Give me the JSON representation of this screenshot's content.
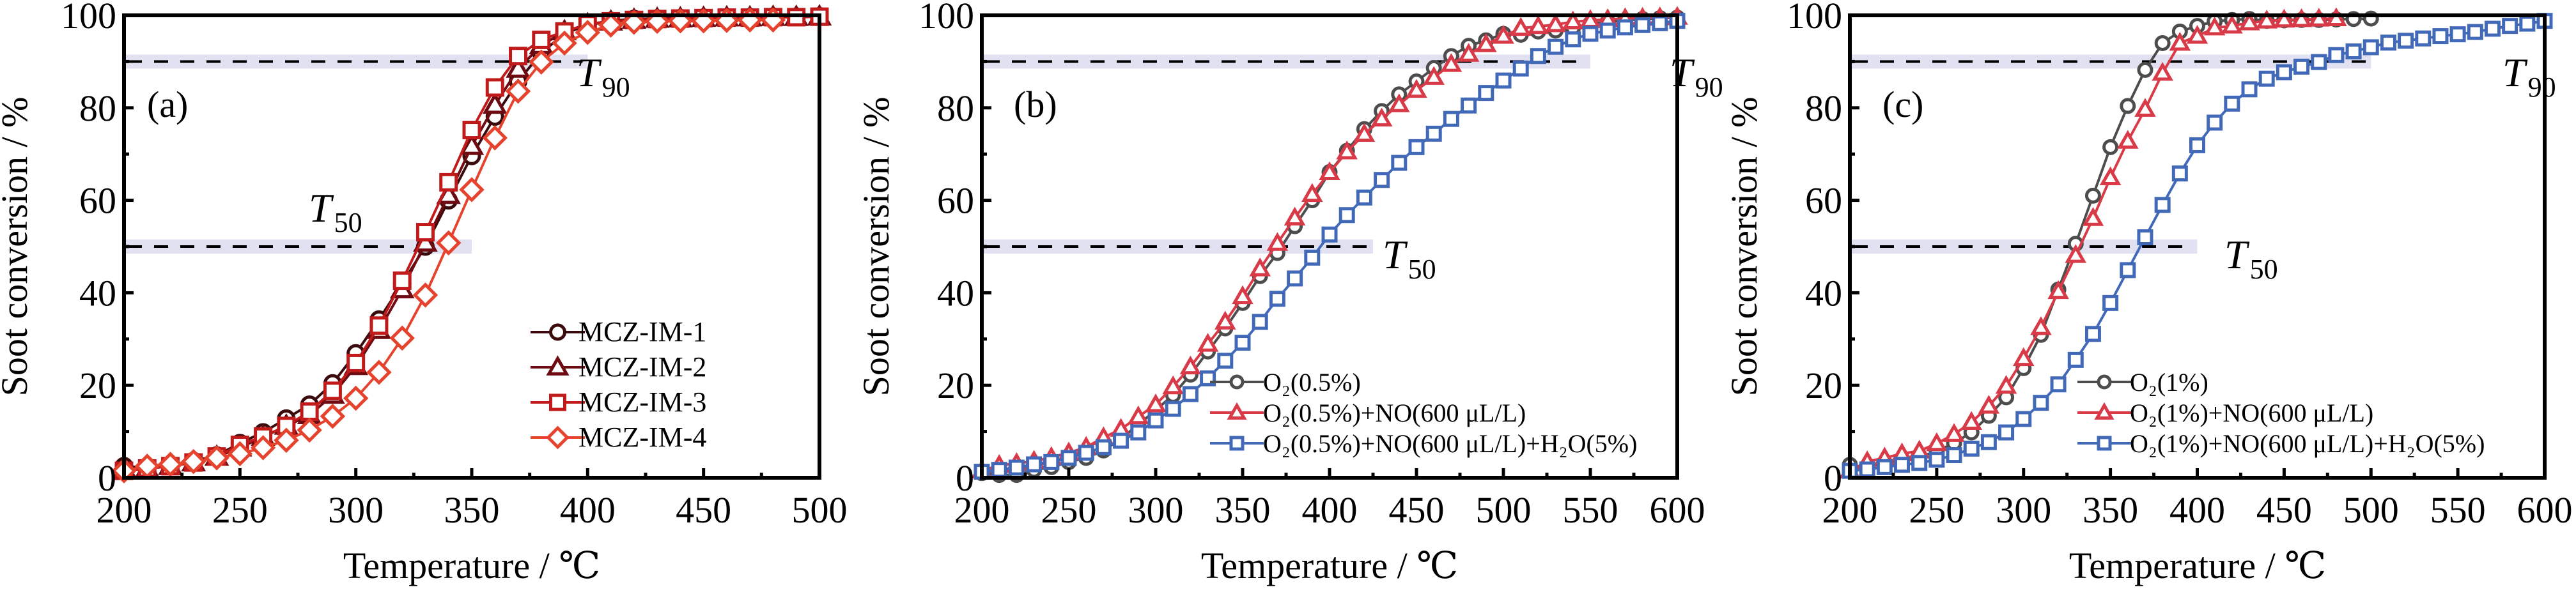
{
  "figure": {
    "y_axis_title": "Soot conversion / %",
    "x_axis_title": "Temperature / ℃"
  },
  "chart_data": [
    {
      "type": "line",
      "panel_label": "(a)",
      "title": "",
      "xlabel": "Temperature / ℃",
      "ylabel": "Soot conversion / %",
      "xlim": [
        200,
        500
      ],
      "ylim": [
        0,
        100
      ],
      "xticks": [
        200,
        250,
        300,
        350,
        400,
        450,
        500
      ],
      "yticks": [
        0,
        20,
        40,
        60,
        80,
        100
      ],
      "grid": false,
      "legend_position": "bottom-right",
      "reference_lines": [
        {
          "label": "T",
          "subscript": "50",
          "y": 50,
          "x_end": 350
        },
        {
          "label": "T",
          "subscript": "90",
          "y": 90,
          "x_end": 400
        }
      ],
      "series": [
        {
          "name": "MCZ-IM-1",
          "marker": "circle",
          "color": "#3b0a0c",
          "x": [
            200,
            210,
            220,
            230,
            240,
            250,
            260,
            270,
            280,
            290,
            300,
            310,
            320,
            330,
            340,
            350,
            360,
            370,
            380,
            390,
            400,
            410,
            420,
            430,
            440,
            450,
            460,
            470,
            480,
            490,
            500
          ],
          "y": [
            2.5,
            2.2,
            2.6,
            3.6,
            4.8,
            7.5,
            9.8,
            12.8,
            15.8,
            20.4,
            26.9,
            34.2,
            42.0,
            50.0,
            60.0,
            69.6,
            78.1,
            85.7,
            91.9,
            96.0,
            98.0,
            98.8,
            99.2,
            99.3,
            99.4,
            99.5,
            99.5,
            99.6,
            99.7,
            99.7,
            99.8
          ]
        },
        {
          "name": "MCZ-IM-2",
          "marker": "triangle",
          "color": "#6e0a12",
          "x": [
            200,
            210,
            220,
            230,
            240,
            250,
            260,
            270,
            280,
            290,
            300,
            310,
            320,
            330,
            340,
            350,
            360,
            370,
            380,
            390,
            400,
            410,
            420,
            430,
            440,
            450,
            460,
            470,
            480,
            490,
            500
          ],
          "y": [
            2.0,
            2.0,
            2.5,
            3.3,
            4.5,
            6.5,
            8.8,
            11.2,
            13.5,
            17.9,
            24.1,
            31.9,
            40.7,
            50.8,
            61.1,
            71.7,
            80.6,
            88.4,
            93.5,
            96.5,
            98.0,
            98.6,
            99.0,
            99.2,
            99.3,
            99.4,
            99.5,
            99.5,
            99.6,
            99.6,
            99.7
          ]
        },
        {
          "name": "MCZ-IM-3",
          "marker": "square",
          "color": "#c01a1a",
          "x": [
            200,
            210,
            220,
            230,
            240,
            250,
            260,
            270,
            280,
            290,
            300,
            310,
            320,
            330,
            340,
            350,
            360,
            370,
            380,
            390,
            400,
            410,
            420,
            430,
            440,
            450,
            460,
            470,
            480,
            490,
            500
          ],
          "y": [
            1.5,
            2.0,
            2.5,
            3.3,
            4.6,
            7.1,
            8.9,
            11.2,
            14.3,
            18.8,
            24.8,
            32.9,
            42.6,
            53.1,
            63.9,
            75.2,
            84.4,
            91.2,
            94.7,
            96.5,
            98.1,
            98.7,
            99.0,
            99.2,
            99.3,
            99.4,
            99.5,
            99.5,
            99.6,
            99.6,
            99.7
          ]
        },
        {
          "name": "MCZ-IM-4",
          "marker": "diamond",
          "color": "#e5432d",
          "x": [
            200,
            210,
            220,
            230,
            240,
            250,
            260,
            270,
            280,
            290,
            300,
            310,
            320,
            330,
            340,
            350,
            360,
            370,
            380,
            390,
            400,
            410,
            420,
            430,
            440,
            450,
            460,
            470,
            480
          ],
          "y": [
            1.5,
            2.5,
            2.9,
            3.5,
            4.3,
            5.2,
            6.5,
            8.1,
            10.3,
            13.3,
            17.2,
            22.8,
            30.2,
            39.5,
            50.8,
            62.3,
            73.5,
            83.6,
            89.9,
            94.0,
            96.3,
            97.9,
            98.5,
            98.7,
            98.8,
            98.8,
            98.9,
            99.0,
            99.0
          ]
        }
      ]
    },
    {
      "type": "line",
      "panel_label": "(b)",
      "title": "",
      "xlabel": "Temperature / ℃",
      "ylabel": "Soot conversion / %",
      "xlim": [
        200,
        600
      ],
      "ylim": [
        0,
        100
      ],
      "xticks": [
        200,
        250,
        300,
        350,
        400,
        450,
        500,
        550,
        600
      ],
      "yticks": [
        0,
        20,
        40,
        60,
        80,
        100
      ],
      "grid": false,
      "legend_position": "bottom-right",
      "reference_lines": [
        {
          "label": "T",
          "subscript": "50",
          "y": 50,
          "x_end": 425
        },
        {
          "label": "T",
          "subscript": "90",
          "y": 90,
          "x_end": 550
        }
      ],
      "series": [
        {
          "name": "O₂(0.5%)",
          "marker": "circle",
          "color": "#4d4d4d",
          "x": [
            200,
            210,
            220,
            230,
            240,
            250,
            260,
            270,
            280,
            290,
            300,
            310,
            320,
            330,
            340,
            350,
            360,
            370,
            380,
            390,
            400,
            410,
            420,
            430,
            440,
            450,
            460,
            470,
            480,
            490,
            500,
            510,
            520,
            530,
            540,
            550,
            560,
            570,
            580,
            590,
            600
          ],
          "y": [
            1.0,
            0.6,
            0.6,
            1.7,
            2.3,
            3.4,
            4.3,
            5.9,
            8.4,
            11.5,
            14.6,
            17.9,
            22.3,
            27.3,
            32.3,
            37.8,
            43.6,
            48.6,
            54.4,
            60.0,
            66.1,
            70.7,
            75.4,
            79.3,
            82.9,
            85.7,
            88.6,
            91.2,
            93.4,
            94.6,
            96.0,
            95.8,
            96.5,
            96.7,
            97.3,
            98.2,
            98.6,
            98.9,
            99.2,
            99.4,
            99.5
          ]
        },
        {
          "name": "O₂(0.5%)+NO(600 μL/L)",
          "marker": "triangle",
          "color": "#d93a48",
          "x": [
            200,
            210,
            220,
            230,
            240,
            250,
            260,
            270,
            280,
            290,
            300,
            310,
            320,
            330,
            340,
            350,
            360,
            370,
            380,
            390,
            400,
            410,
            420,
            430,
            440,
            450,
            460,
            470,
            480,
            490,
            500,
            510,
            520,
            530,
            540,
            550,
            560,
            570,
            580,
            590,
            600
          ],
          "y": [
            1.5,
            2.7,
            3.1,
            3.6,
            4.4,
            5.4,
            6.6,
            8.7,
            10.5,
            13.2,
            15.8,
            19.7,
            24.0,
            28.9,
            33.7,
            39.2,
            45.2,
            50.7,
            56.2,
            61.3,
            66.0,
            70.5,
            74.3,
            77.6,
            80.7,
            83.8,
            86.6,
            89.4,
            91.6,
            93.7,
            95.5,
            97.2,
            97.6,
            98.0,
            98.6,
            98.9,
            99.1,
            99.3,
            99.4,
            99.5,
            99.6
          ]
        },
        {
          "name": "O₂(0.5%)+NO(600 μL/L)+H₂O(5%)",
          "marker": "square",
          "color": "#4169b8",
          "x": [
            200,
            210,
            220,
            230,
            240,
            250,
            260,
            270,
            280,
            290,
            300,
            310,
            320,
            330,
            340,
            350,
            360,
            370,
            380,
            390,
            400,
            410,
            420,
            430,
            440,
            450,
            460,
            470,
            480,
            490,
            500,
            510,
            520,
            530,
            540,
            550,
            560,
            570,
            580,
            590,
            600
          ],
          "y": [
            1.3,
            1.7,
            2.2,
            2.9,
            3.4,
            4.3,
            5.4,
            6.6,
            8.0,
            9.8,
            12.4,
            14.9,
            18.1,
            21.5,
            25.3,
            29.2,
            33.7,
            38.7,
            43.1,
            47.6,
            52.6,
            56.8,
            60.6,
            64.4,
            68.1,
            71.5,
            74.4,
            77.6,
            80.5,
            83.2,
            85.9,
            88.5,
            91.2,
            93.2,
            94.8,
            96.0,
            96.7,
            97.4,
            97.9,
            98.3,
            98.8
          ]
        }
      ]
    },
    {
      "type": "line",
      "panel_label": "(c)",
      "title": "",
      "xlabel": "Temperature / ℃",
      "ylabel": "Soot conversion / %",
      "xlim": [
        200,
        600
      ],
      "ylim": [
        0,
        100
      ],
      "xticks": [
        200,
        250,
        300,
        350,
        400,
        450,
        500,
        550,
        600
      ],
      "yticks": [
        0,
        20,
        40,
        60,
        80,
        100
      ],
      "grid": false,
      "legend_position": "bottom-right",
      "reference_lines": [
        {
          "label": "T",
          "subscript": "50",
          "y": 50,
          "x_end": 400
        },
        {
          "label": "T",
          "subscript": "90",
          "y": 90,
          "x_end": 500
        }
      ],
      "series": [
        {
          "name": "O₂(1%)",
          "marker": "circle",
          "color": "#4d4d4d",
          "x": [
            200,
            210,
            220,
            230,
            240,
            250,
            260,
            270,
            280,
            290,
            300,
            310,
            320,
            330,
            340,
            350,
            360,
            370,
            380,
            390,
            400,
            410,
            420,
            430,
            440,
            450,
            460,
            470,
            480,
            490,
            500
          ],
          "y": [
            2.8,
            2.2,
            3.3,
            3.8,
            4.5,
            5.7,
            7.5,
            9.8,
            13.4,
            17.4,
            23.7,
            30.9,
            40.7,
            50.6,
            61.0,
            71.5,
            80.4,
            88.2,
            94.0,
            96.5,
            97.7,
            98.7,
            99.0,
            99.2,
            98.8,
            98.9,
            99.0,
            99.0,
            99.1,
            99.2,
            99.3
          ]
        },
        {
          "name": "O₂(1%)+NO(600 μL/L)",
          "marker": "triangle",
          "color": "#d93a48",
          "x": [
            200,
            210,
            220,
            230,
            240,
            250,
            260,
            270,
            280,
            290,
            300,
            310,
            320,
            330,
            340,
            350,
            360,
            370,
            380,
            390,
            400,
            410,
            420,
            430,
            440,
            450,
            460,
            470,
            480
          ],
          "y": [
            1.5,
            3.5,
            4.3,
            5.2,
            5.8,
            7.4,
            9.4,
            12.0,
            15.5,
            19.8,
            25.8,
            32.5,
            40.3,
            48.1,
            56.1,
            64.9,
            72.8,
            79.7,
            87.5,
            94.0,
            95.5,
            97.3,
            97.7,
            98.4,
            98.8,
            99.0,
            99.1,
            99.2,
            99.3
          ]
        },
        {
          "name": "O₂(1%)+NO(600 μL/L)+H₂O(5%)",
          "marker": "square",
          "color": "#4169b8",
          "x": [
            200,
            210,
            220,
            230,
            240,
            250,
            260,
            270,
            280,
            290,
            300,
            310,
            320,
            330,
            340,
            350,
            360,
            370,
            380,
            390,
            400,
            410,
            420,
            430,
            440,
            450,
            460,
            470,
            480,
            490,
            500,
            510,
            520,
            530,
            540,
            550,
            560,
            570,
            580,
            590,
            600
          ],
          "y": [
            1.5,
            1.8,
            2.3,
            2.8,
            3.2,
            3.9,
            4.9,
            6.3,
            7.7,
            9.8,
            12.7,
            16.2,
            20.2,
            25.5,
            31.1,
            37.8,
            44.9,
            52.0,
            59.0,
            65.8,
            71.9,
            76.8,
            80.9,
            84.0,
            86.3,
            87.7,
            88.9,
            89.9,
            91.4,
            92.2,
            93.1,
            94.1,
            94.5,
            95.0,
            95.5,
            95.9,
            96.4,
            97.1,
            97.7,
            98.2,
            98.8
          ]
        }
      ]
    }
  ]
}
